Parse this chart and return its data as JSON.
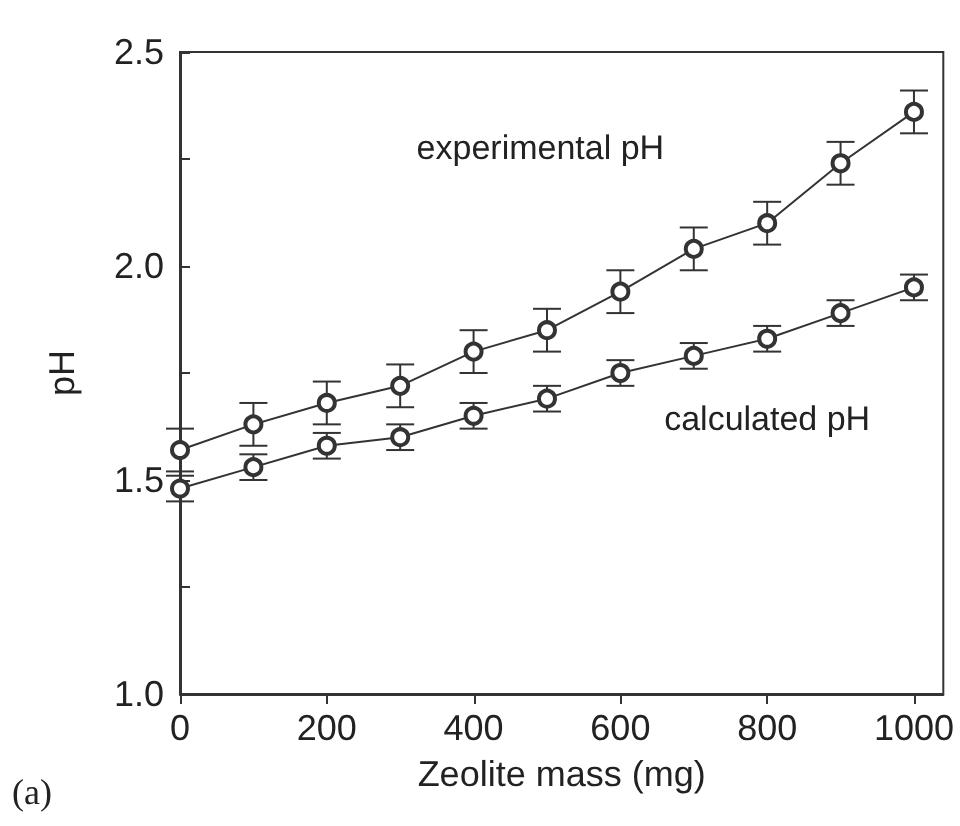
{
  "chart_data": {
    "type": "line",
    "xlabel": "Zeolite mass (mg)",
    "ylabel": "pH",
    "x": [
      0,
      100,
      200,
      300,
      400,
      500,
      600,
      700,
      800,
      900,
      1000
    ],
    "series": [
      {
        "name": "experimental pH",
        "color": "#333333",
        "values": [
          1.57,
          1.63,
          1.68,
          1.72,
          1.8,
          1.85,
          1.94,
          2.04,
          2.1,
          2.24,
          2.36
        ],
        "errors": [
          0.05,
          0.05,
          0.05,
          0.05,
          0.05,
          0.05,
          0.05,
          0.05,
          0.05,
          0.05,
          0.05
        ]
      },
      {
        "name": "calculated pH",
        "color": "#333333",
        "values": [
          1.48,
          1.53,
          1.58,
          1.6,
          1.65,
          1.69,
          1.75,
          1.79,
          1.83,
          1.89,
          1.95
        ],
        "errors": [
          0.03,
          0.03,
          0.03,
          0.03,
          0.03,
          0.03,
          0.03,
          0.03,
          0.03,
          0.03,
          0.03
        ]
      }
    ],
    "xlim": [
      0,
      1040
    ],
    "xticks": [
      0,
      200,
      400,
      600,
      800,
      1000
    ],
    "ylim": [
      1.0,
      2.5
    ],
    "yticks": [
      {
        "value": 1.0,
        "label": "1.0"
      },
      {
        "value": 1.25,
        "label": null
      },
      {
        "value": 1.5,
        "label": "1.5"
      },
      {
        "value": 1.75,
        "label": null
      },
      {
        "value": 2.0,
        "label": "2.0"
      },
      {
        "value": 2.25,
        "label": null
      },
      {
        "value": 2.5,
        "label": "2.5"
      }
    ],
    "marker": "circle",
    "line_style": "solid",
    "grid": false,
    "legend": false,
    "annotations": [
      "(a)"
    ]
  }
}
